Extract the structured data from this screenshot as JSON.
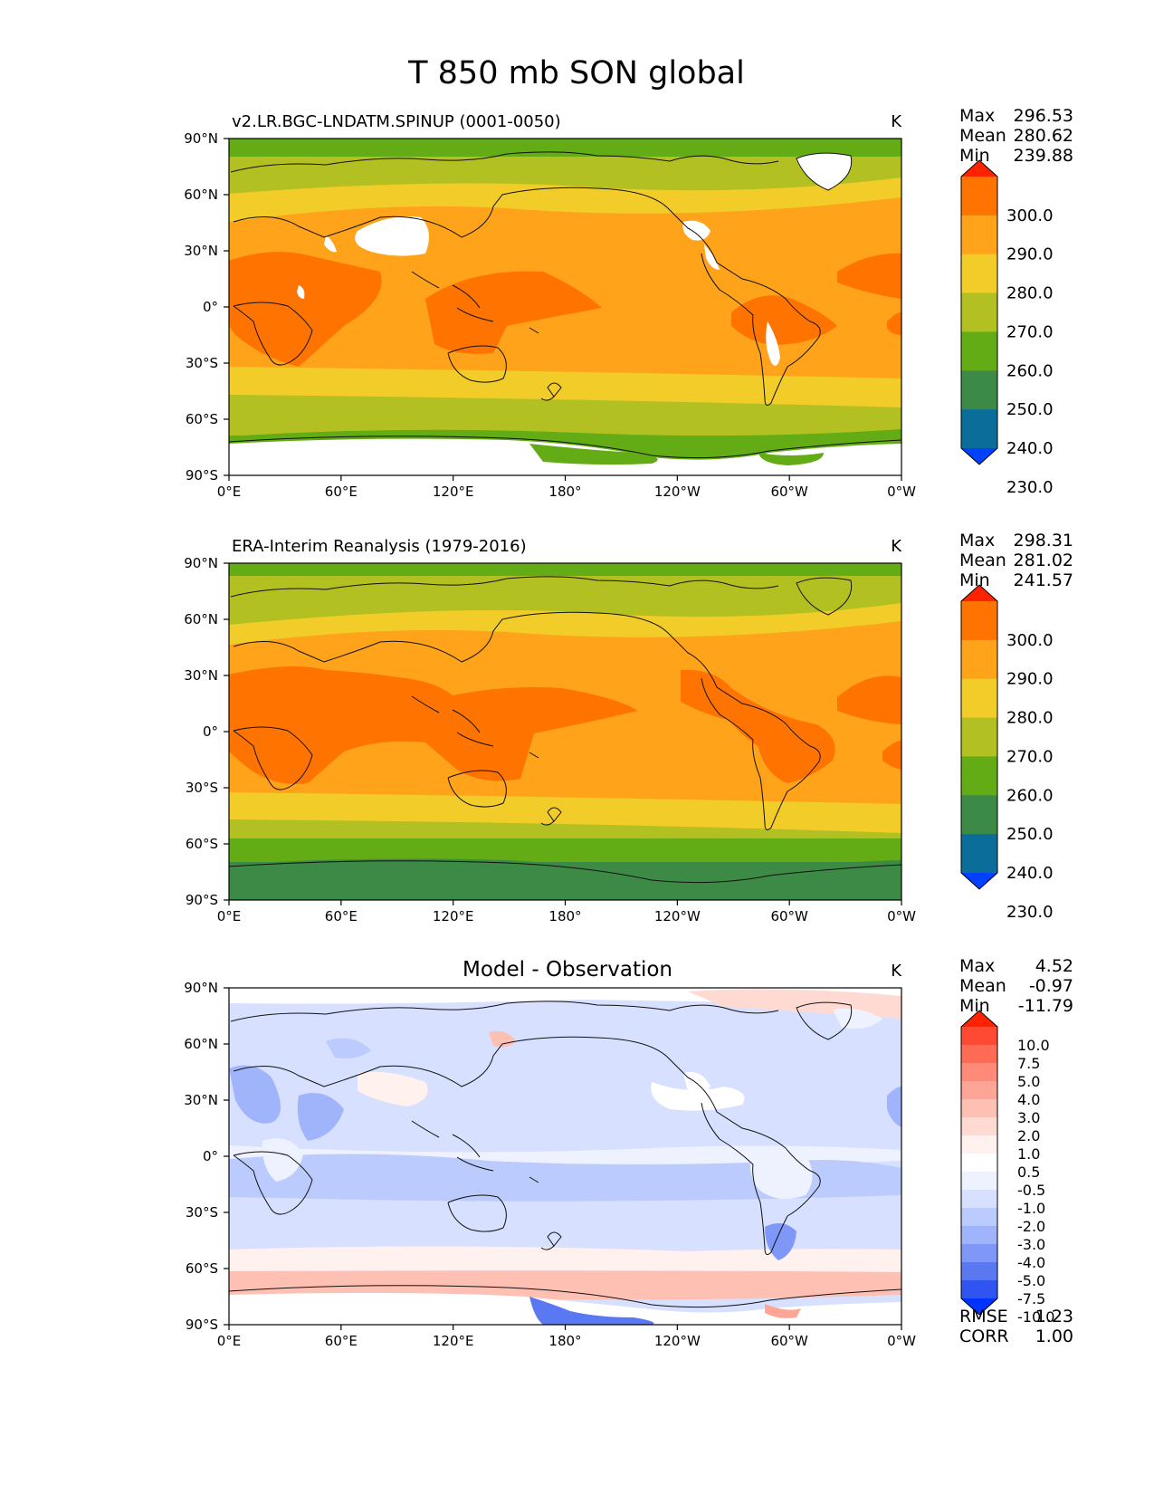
{
  "title": "T 850 mb SON global",
  "x_ticks": [
    "0°E",
    "60°E",
    "120°E",
    "180°",
    "120°W",
    "60°W",
    "0°W"
  ],
  "y_ticks": [
    "90°N",
    "60°N",
    "30°N",
    "0°",
    "30°S",
    "60°S",
    "90°S"
  ],
  "panels": [
    {
      "id": "model",
      "left_title": "v2.LR.BGC-LNDATM.SPINUP (0001-0050)",
      "center_title": "",
      "units": "K",
      "stats": [
        {
          "label": "Max",
          "value": "296.53"
        },
        {
          "label": "Mean",
          "value": "280.62"
        },
        {
          "label": "Min",
          "value": "239.88"
        }
      ],
      "colorbar": {
        "labels": [
          "300.0",
          "290.0",
          "280.0",
          "270.0",
          "260.0",
          "250.0",
          "240.0",
          "230.0"
        ],
        "colors": [
          "#ff2200",
          "#ff7300",
          "#ffa31a",
          "#f2cc28",
          "#b2c021",
          "#63ac15",
          "#3d8a46",
          "#0a6d9a",
          "#0040ff"
        ]
      },
      "footer": []
    },
    {
      "id": "obs",
      "left_title": "ERA-Interim Reanalysis (1979-2016)",
      "center_title": "",
      "units": "K",
      "stats": [
        {
          "label": "Max",
          "value": "298.31"
        },
        {
          "label": "Mean",
          "value": "281.02"
        },
        {
          "label": "Min",
          "value": "241.57"
        }
      ],
      "colorbar": {
        "labels": [
          "300.0",
          "290.0",
          "280.0",
          "270.0",
          "260.0",
          "250.0",
          "240.0",
          "230.0"
        ],
        "colors": [
          "#ff2200",
          "#ff7300",
          "#ffa31a",
          "#f2cc28",
          "#b2c021",
          "#63ac15",
          "#3d8a46",
          "#0a6d9a",
          "#0040ff"
        ]
      },
      "footer": []
    },
    {
      "id": "diff",
      "left_title": "",
      "center_title": "Model - Observation",
      "units": "K",
      "stats": [
        {
          "label": "Max",
          "value": "4.52"
        },
        {
          "label": "Mean",
          "value": "-0.97"
        },
        {
          "label": "Min",
          "value": "-11.79"
        }
      ],
      "colorbar": {
        "labels": [
          "10.0",
          "7.5",
          "5.0",
          "4.0",
          "3.0",
          "2.0",
          "1.0",
          "0.5",
          "-0.5",
          "-1.0",
          "-2.0",
          "-3.0",
          "-4.0",
          "-5.0",
          "-7.5",
          "-10.0"
        ],
        "colors": [
          "#ff2200",
          "#ff4a33",
          "#ff6b55",
          "#ff8a78",
          "#ffa596",
          "#ffc0b4",
          "#ffdad2",
          "#fff1ee",
          "#ffffff",
          "#eef2ff",
          "#d7e0fe",
          "#bccbfd",
          "#a0b4fb",
          "#7f98f7",
          "#5b78f3",
          "#2f54f0",
          "#0033ff"
        ]
      },
      "footer": [
        {
          "label": "RMSE",
          "value": "1.23"
        },
        {
          "label": "CORR",
          "value": "1.00"
        }
      ]
    }
  ]
}
